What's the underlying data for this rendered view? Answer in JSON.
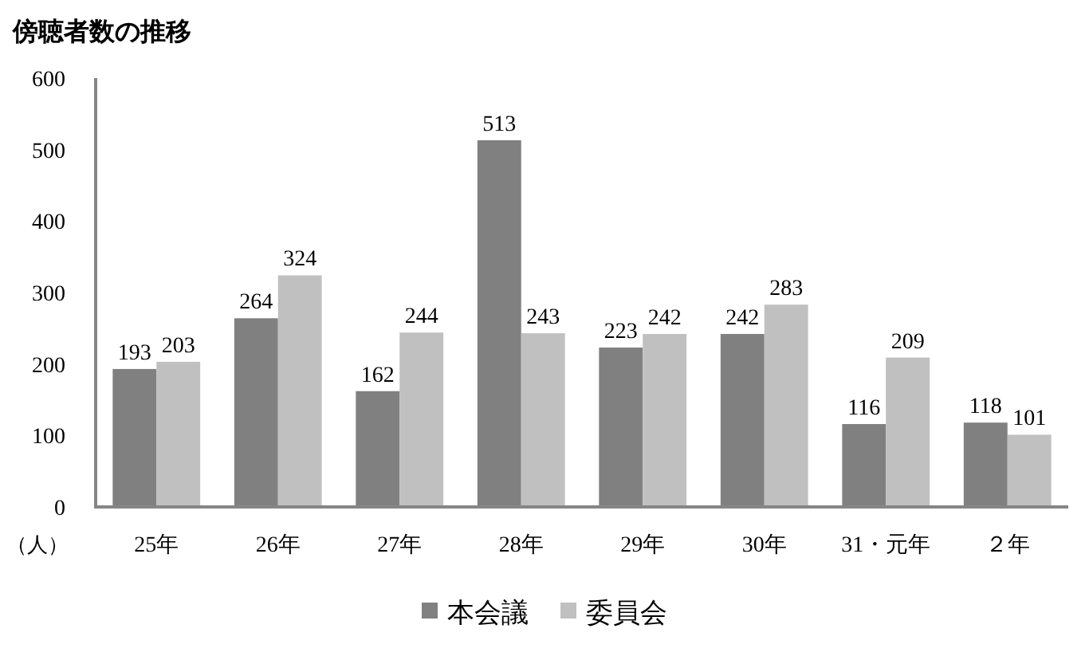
{
  "chart_data": {
    "type": "bar",
    "title": "傍聴者数の推移",
    "ylabel": "（人）",
    "categories": [
      "25年",
      "26年",
      "27年",
      "28年",
      "29年",
      "30年",
      "31・元年",
      "２年"
    ],
    "series": [
      {
        "name": "本会議",
        "color": "#808080",
        "values": [
          193,
          264,
          162,
          513,
          223,
          242,
          116,
          118
        ]
      },
      {
        "name": "委員会",
        "color": "#c0c0c0",
        "values": [
          203,
          324,
          244,
          243,
          242,
          283,
          209,
          101
        ]
      }
    ],
    "ylim": [
      0,
      600
    ],
    "yticks": [
      0,
      100,
      200,
      300,
      400,
      500,
      600
    ],
    "data_labels": true,
    "legend": "bottom"
  }
}
